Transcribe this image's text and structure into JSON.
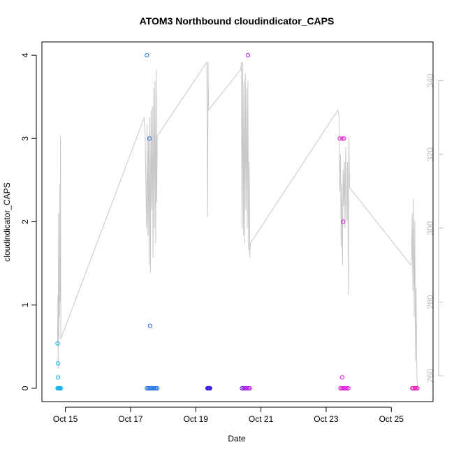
{
  "chart_data": {
    "type": "scatter",
    "title": "ATOM3 Northbound cloudindicator_CAPS",
    "xlabel": "Date",
    "ylabel": "cloudindicator_CAPS",
    "x_ticks": [
      {
        "label": "Oct 15",
        "day": 15
      },
      {
        "label": "Oct 17",
        "day": 17
      },
      {
        "label": "Oct 19",
        "day": 19
      },
      {
        "label": "Oct 21",
        "day": 21
      },
      {
        "label": "Oct 23",
        "day": 23
      },
      {
        "label": "Oct 25",
        "day": 25
      }
    ],
    "xlim_days": [
      14.28,
      26.28
    ],
    "y_ticks": [
      0,
      1,
      2,
      3,
      4
    ],
    "ylim": [
      -0.16,
      4.16
    ],
    "y2_ticks": [
      260,
      280,
      300,
      320,
      340
    ],
    "y2lim": [
      253.0,
      350.5
    ],
    "grid": false,
    "legend": "none",
    "colors": {
      "line": "#c8c8c8",
      "frame": "#000000",
      "right_axis": "#bdbdbd",
      "point_scale": [
        "#14b4e6",
        "#1e6ee6",
        "#1e46e6",
        "#3c14e6",
        "#7a14e6",
        "#b414e6",
        "#dc14dc",
        "#e614b4"
      ]
    },
    "points": [
      {
        "x": 14.76,
        "y": 0.54,
        "c": 0
      },
      {
        "x": 14.77,
        "y": 0.3,
        "c": 0
      },
      {
        "x": 14.77,
        "y": 0.13,
        "c": 0
      },
      {
        "x": 14.76,
        "y": 0,
        "c": 0
      },
      {
        "x": 14.78,
        "y": 0,
        "c": 0
      },
      {
        "x": 14.8,
        "y": 0,
        "c": 0
      },
      {
        "x": 14.82,
        "y": 0,
        "c": 0
      },
      {
        "x": 14.84,
        "y": 0,
        "c": 0
      },
      {
        "x": 14.86,
        "y": 0,
        "c": 0
      },
      {
        "x": 17.5,
        "y": 4,
        "c": 1
      },
      {
        "x": 17.58,
        "y": 3,
        "c": 1
      },
      {
        "x": 17.6,
        "y": 0.75,
        "c": 1
      },
      {
        "x": 17.5,
        "y": 0,
        "c": 1
      },
      {
        "x": 17.54,
        "y": 0,
        "c": 1
      },
      {
        "x": 17.58,
        "y": 0,
        "c": 1
      },
      {
        "x": 17.62,
        "y": 0,
        "c": 1
      },
      {
        "x": 17.66,
        "y": 0,
        "c": 1
      },
      {
        "x": 17.7,
        "y": 0,
        "c": 1
      },
      {
        "x": 17.74,
        "y": 0,
        "c": 1
      },
      {
        "x": 17.78,
        "y": 0,
        "c": 1
      },
      {
        "x": 17.82,
        "y": 0,
        "c": 1
      },
      {
        "x": 19.36,
        "y": 0,
        "c": 3
      },
      {
        "x": 19.38,
        "y": 0,
        "c": 3
      },
      {
        "x": 19.4,
        "y": 0,
        "c": 3
      },
      {
        "x": 19.42,
        "y": 0,
        "c": 3
      },
      {
        "x": 19.44,
        "y": 0,
        "c": 3
      },
      {
        "x": 20.6,
        "y": 4,
        "c": 5
      },
      {
        "x": 20.42,
        "y": 0,
        "c": 4
      },
      {
        "x": 20.46,
        "y": 0,
        "c": 4
      },
      {
        "x": 20.5,
        "y": 0,
        "c": 4
      },
      {
        "x": 20.54,
        "y": 0,
        "c": 5
      },
      {
        "x": 20.58,
        "y": 0,
        "c": 5
      },
      {
        "x": 20.62,
        "y": 0,
        "c": 5
      },
      {
        "x": 20.66,
        "y": 0,
        "c": 5
      },
      {
        "x": 23.42,
        "y": 3,
        "c": 6
      },
      {
        "x": 23.5,
        "y": 3,
        "c": 6
      },
      {
        "x": 23.55,
        "y": 3,
        "c": 6
      },
      {
        "x": 23.52,
        "y": 2,
        "c": 6
      },
      {
        "x": 23.49,
        "y": 0.13,
        "c": 6
      },
      {
        "x": 23.44,
        "y": 0,
        "c": 6
      },
      {
        "x": 23.48,
        "y": 0,
        "c": 6
      },
      {
        "x": 23.52,
        "y": 0,
        "c": 6
      },
      {
        "x": 23.56,
        "y": 0,
        "c": 6
      },
      {
        "x": 23.6,
        "y": 0,
        "c": 6
      },
      {
        "x": 23.64,
        "y": 0,
        "c": 6
      },
      {
        "x": 23.68,
        "y": 0,
        "c": 6
      },
      {
        "x": 25.64,
        "y": 0,
        "c": 7
      },
      {
        "x": 25.68,
        "y": 0,
        "c": 7
      },
      {
        "x": 25.72,
        "y": 0,
        "c": 7
      },
      {
        "x": 25.76,
        "y": 0,
        "c": 7
      },
      {
        "x": 25.8,
        "y": 0,
        "c": 7
      }
    ],
    "line_y2": [
      [
        14.76,
        268
      ],
      [
        14.77,
        282
      ],
      [
        14.78,
        262
      ],
      [
        14.79,
        304
      ],
      [
        14.8,
        270
      ],
      [
        14.81,
        292
      ],
      [
        14.82,
        276
      ],
      [
        14.83,
        312
      ],
      [
        14.84,
        280
      ],
      [
        14.85,
        325
      ],
      [
        14.86,
        270
      ],
      [
        17.42,
        330
      ],
      [
        17.45,
        325
      ],
      [
        17.47,
        310
      ],
      [
        17.49,
        300
      ],
      [
        17.51,
        328
      ],
      [
        17.53,
        298
      ],
      [
        17.55,
        325
      ],
      [
        17.57,
        290
      ],
      [
        17.59,
        330
      ],
      [
        17.61,
        288
      ],
      [
        17.63,
        332
      ],
      [
        17.65,
        305
      ],
      [
        17.67,
        333
      ],
      [
        17.69,
        292
      ],
      [
        17.71,
        338
      ],
      [
        17.73,
        300
      ],
      [
        17.75,
        340
      ],
      [
        17.77,
        296
      ],
      [
        17.79,
        343
      ],
      [
        17.8,
        307
      ],
      [
        17.82,
        325
      ],
      [
        19.34,
        345
      ],
      [
        19.36,
        303
      ],
      [
        19.38,
        345
      ],
      [
        19.39,
        332
      ],
      [
        20.38,
        343
      ],
      [
        20.4,
        345
      ],
      [
        20.42,
        300
      ],
      [
        20.44,
        345
      ],
      [
        20.46,
        298
      ],
      [
        20.48,
        340
      ],
      [
        20.5,
        296
      ],
      [
        20.52,
        342
      ],
      [
        20.54,
        305
      ],
      [
        20.56,
        338
      ],
      [
        20.58,
        300
      ],
      [
        20.6,
        340
      ],
      [
        20.62,
        294
      ],
      [
        20.64,
        318
      ],
      [
        20.66,
        292
      ],
      [
        20.68,
        296
      ],
      [
        23.36,
        332
      ],
      [
        23.4,
        330
      ],
      [
        23.42,
        310
      ],
      [
        23.44,
        320
      ],
      [
        23.46,
        295
      ],
      [
        23.48,
        312
      ],
      [
        23.5,
        290
      ],
      [
        23.52,
        316
      ],
      [
        23.54,
        306
      ],
      [
        23.56,
        318
      ],
      [
        23.58,
        300
      ],
      [
        23.6,
        322
      ],
      [
        23.62,
        312
      ],
      [
        23.64,
        302
      ],
      [
        23.66,
        318
      ],
      [
        23.68,
        282
      ],
      [
        23.7,
        325
      ],
      [
        23.72,
        311
      ],
      [
        25.6,
        290
      ],
      [
        25.62,
        292
      ],
      [
        25.64,
        304
      ],
      [
        25.66,
        283
      ],
      [
        25.68,
        308
      ],
      [
        25.7,
        276
      ],
      [
        25.72,
        302
      ],
      [
        25.74,
        264
      ],
      [
        25.76,
        284
      ],
      [
        25.78,
        262
      ],
      [
        25.8,
        256
      ]
    ]
  }
}
